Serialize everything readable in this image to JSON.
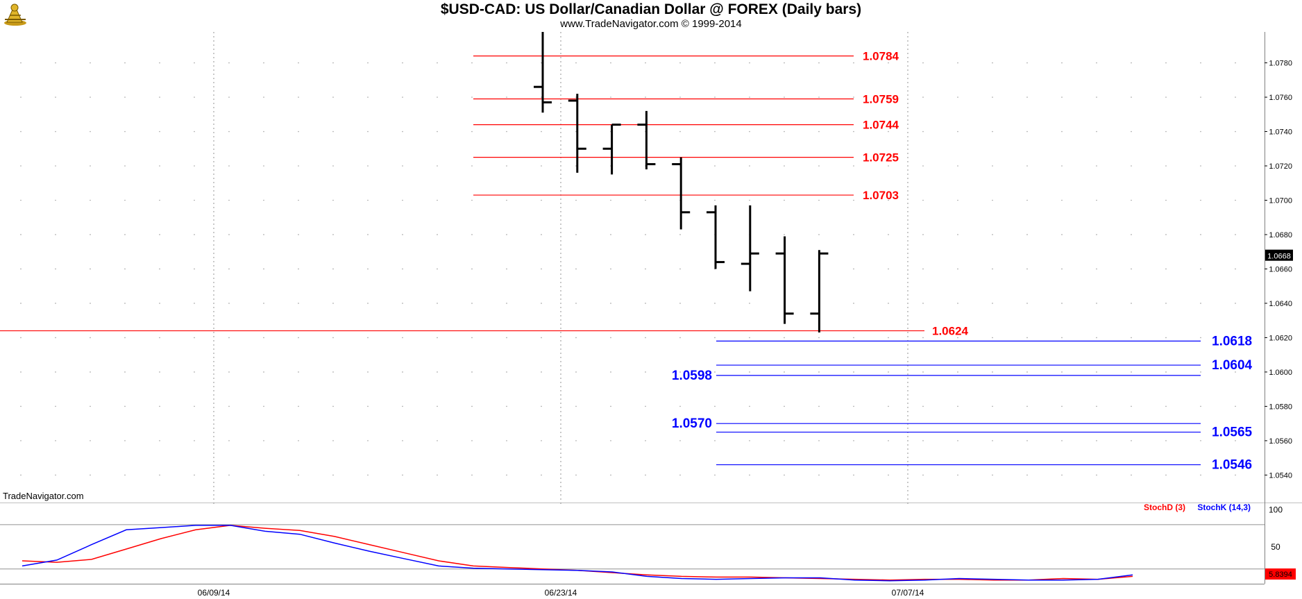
{
  "header": {
    "title": "$USD-CAD:  US Dollar/Canadian Dollar @ FOREX  (Daily bars)",
    "subtitle": "www.TradeNavigator.com © 1999-2014"
  },
  "brand": "TradeNavigator.com",
  "colors": {
    "bars": "#000000",
    "resistance": "#ff0000",
    "support": "#0000ff",
    "stochD": "#ff0000",
    "stochK": "#0000ff"
  },
  "chart_data": [
    {
      "type": "ohlc",
      "title": "$USD-CAD:  US Dollar/Canadian Dollar @ FOREX  (Daily bars)",
      "x_date_labels": [
        "06/09/14",
        "06/23/14",
        "07/07/14"
      ],
      "y_ticks": [
        1.054,
        1.056,
        1.058,
        1.06,
        1.062,
        1.064,
        1.066,
        1.068,
        1.07,
        1.072,
        1.074,
        1.076,
        1.078
      ],
      "ylim": [
        1.0524,
        1.0798
      ],
      "current_price": "1.0668",
      "bars": [
        {
          "open": 1.0766,
          "high": 1.0798,
          "low": 1.0751,
          "close": 1.0757
        },
        {
          "open": 1.0758,
          "high": 1.0762,
          "low": 1.0716,
          "close": 1.073
        },
        {
          "open": 1.073,
          "high": 1.0744,
          "low": 1.0715,
          "close": 1.0744
        },
        {
          "open": 1.0744,
          "high": 1.0752,
          "low": 1.0718,
          "close": 1.0721
        },
        {
          "open": 1.0721,
          "high": 1.0725,
          "low": 1.0683,
          "close": 1.0693
        },
        {
          "open": 1.0693,
          "high": 1.0697,
          "low": 1.066,
          "close": 1.0664
        },
        {
          "open": 1.0663,
          "high": 1.0697,
          "low": 1.0647,
          "close": 1.0669
        },
        {
          "open": 1.0669,
          "high": 1.0679,
          "low": 1.0628,
          "close": 1.0634
        },
        {
          "open": 1.0634,
          "high": 1.0671,
          "low": 1.0623,
          "close": 1.0669
        }
      ],
      "resistance_levels": [
        {
          "value": 1.0784,
          "label": "1.0784"
        },
        {
          "value": 1.0759,
          "label": "1.0759"
        },
        {
          "value": 1.0744,
          "label": "1.0744"
        },
        {
          "value": 1.0725,
          "label": "1.0725"
        },
        {
          "value": 1.0703,
          "label": "1.0703"
        },
        {
          "value": 1.0624,
          "label": "1.0624"
        }
      ],
      "support_levels": [
        {
          "value": 1.0618,
          "label": "1.0618",
          "label_side": "right"
        },
        {
          "value": 1.0604,
          "label": "1.0604",
          "label_side": "right"
        },
        {
          "value": 1.0598,
          "label": "1.0598",
          "label_side": "left"
        },
        {
          "value": 1.057,
          "label": "1.0570",
          "label_side": "left"
        },
        {
          "value": 1.0565,
          "label": "1.0565",
          "label_side": "right"
        },
        {
          "value": 1.0546,
          "label": "1.0546",
          "label_side": "right"
        }
      ],
      "grid": true
    },
    {
      "type": "line",
      "y_ticks": [
        100,
        50
      ],
      "ylim": [
        0,
        108
      ],
      "reference_levels": [
        80,
        20
      ],
      "current_value": "5.8394",
      "series": [
        {
          "name": "StochD (3)",
          "values": [
            31,
            29,
            33,
            47,
            61,
            73,
            79,
            75,
            72,
            64,
            53,
            42,
            31,
            24,
            22,
            20,
            18,
            15,
            12,
            10,
            9,
            9,
            8,
            7,
            6,
            5,
            6,
            6,
            5,
            5,
            7,
            6,
            10
          ]
        },
        {
          "name": "StochK (14,3)",
          "values": [
            24,
            32,
            53,
            73,
            76,
            79,
            79,
            71,
            67,
            55,
            44,
            34,
            24,
            21,
            20,
            19,
            18,
            16,
            10,
            7,
            6,
            7,
            8,
            8,
            5,
            4,
            5,
            7,
            6,
            5,
            5,
            6,
            12
          ]
        }
      ]
    }
  ]
}
